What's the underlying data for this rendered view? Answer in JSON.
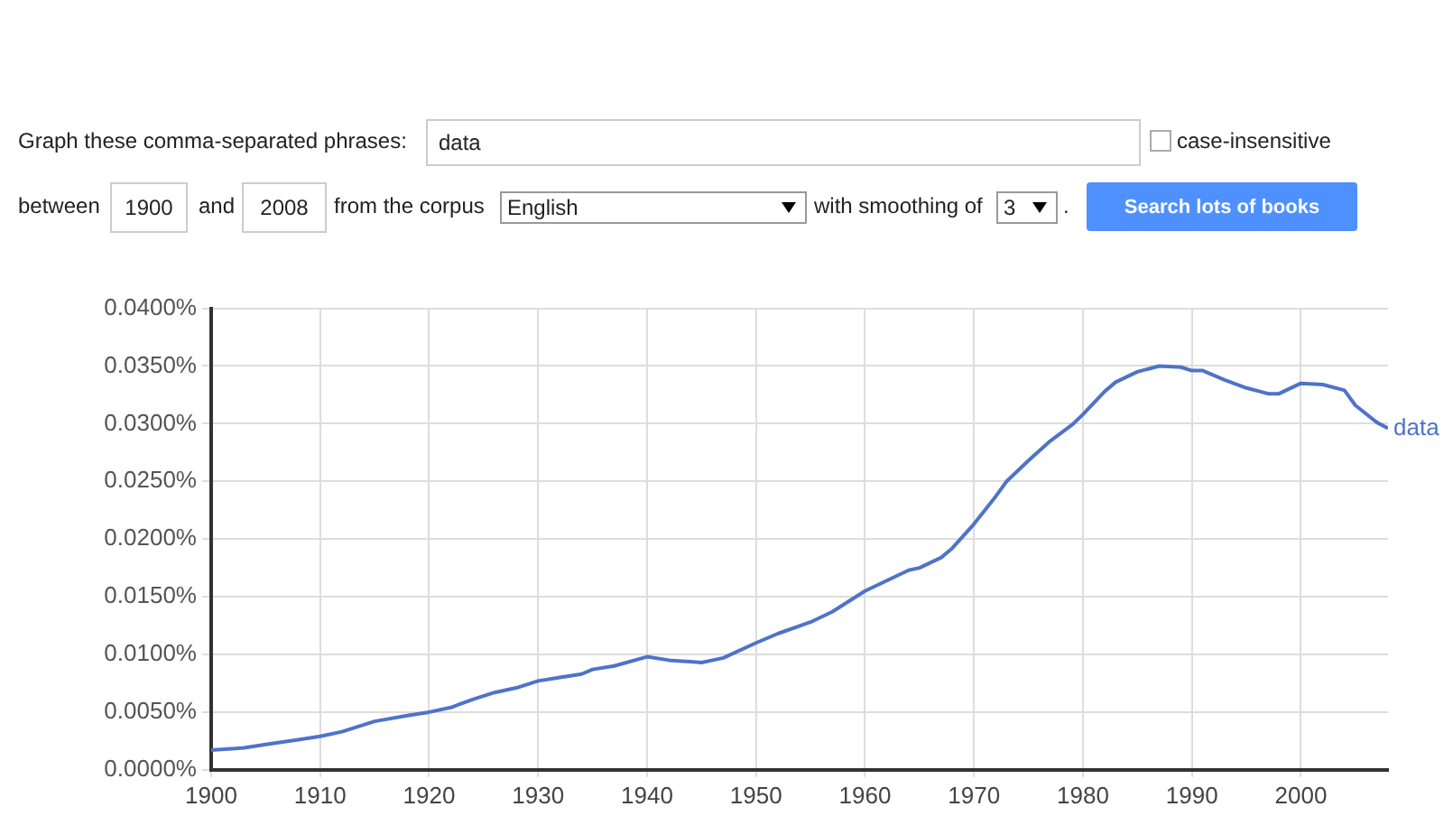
{
  "chart_data": {
    "type": "line",
    "annotations": [
      "Graph these comma-separated phrases:",
      "data",
      "case-insensitive",
      "between",
      "1900",
      "and",
      "2008",
      "from the corpus",
      "English",
      "with smoothing of",
      "3",
      ".",
      "Search lots of books"
    ],
    "x": [
      1900,
      1903,
      1905,
      1908,
      1910,
      1912,
      1915,
      1918,
      1920,
      1922,
      1924,
      1926,
      1928,
      1930,
      1932,
      1934,
      1935,
      1937,
      1940,
      1942,
      1945,
      1947,
      1950,
      1952,
      1955,
      1957,
      1960,
      1962,
      1964,
      1965,
      1967,
      1968,
      1970,
      1972,
      1973,
      1975,
      1977,
      1979,
      1980,
      1982,
      1983,
      1985,
      1987,
      1989,
      1990,
      1991,
      1993,
      1995,
      1997,
      1998,
      2000,
      2002,
      2004,
      2005,
      2007,
      2008
    ],
    "series": [
      {
        "name": "data",
        "color": "#4e73c9",
        "values": [
          0.0017,
          0.0019,
          0.0022,
          0.0026,
          0.0029,
          0.0033,
          0.0042,
          0.0047,
          0.005,
          0.0054,
          0.0061,
          0.0067,
          0.0071,
          0.0077,
          0.008,
          0.0083,
          0.0087,
          0.009,
          0.0098,
          0.0095,
          0.0093,
          0.0097,
          0.011,
          0.0118,
          0.0128,
          0.0137,
          0.0155,
          0.0164,
          0.0173,
          0.0175,
          0.0184,
          0.0192,
          0.0213,
          0.0237,
          0.025,
          0.0268,
          0.0285,
          0.0299,
          0.0308,
          0.0328,
          0.0336,
          0.0345,
          0.035,
          0.0349,
          0.0346,
          0.0346,
          0.0338,
          0.0331,
          0.0326,
          0.0326,
          0.0335,
          0.0334,
          0.0329,
          0.0316,
          0.0301,
          0.0296
        ]
      }
    ],
    "xlim": [
      1900,
      2008
    ],
    "xticks": [
      1900,
      1910,
      1920,
      1930,
      1940,
      1950,
      1960,
      1970,
      1980,
      1990,
      2000
    ],
    "ylim": [
      0,
      0.04
    ],
    "yticks": [
      {
        "value": 0,
        "label": "0.0000%"
      },
      {
        "value": 0.005,
        "label": "0.0050%"
      },
      {
        "value": 0.01,
        "label": "0.0100%"
      },
      {
        "value": 0.015,
        "label": "0.0150%"
      },
      {
        "value": 0.02,
        "label": "0.0200%"
      },
      {
        "value": 0.025,
        "label": "0.0250%"
      },
      {
        "value": 0.03,
        "label": "0.0300%"
      },
      {
        "value": 0.035,
        "label": "0.0350%"
      },
      {
        "value": 0.04,
        "label": "0.0400%"
      }
    ],
    "grid": true,
    "legend": false,
    "marker": "none",
    "line_style": "solid"
  }
}
